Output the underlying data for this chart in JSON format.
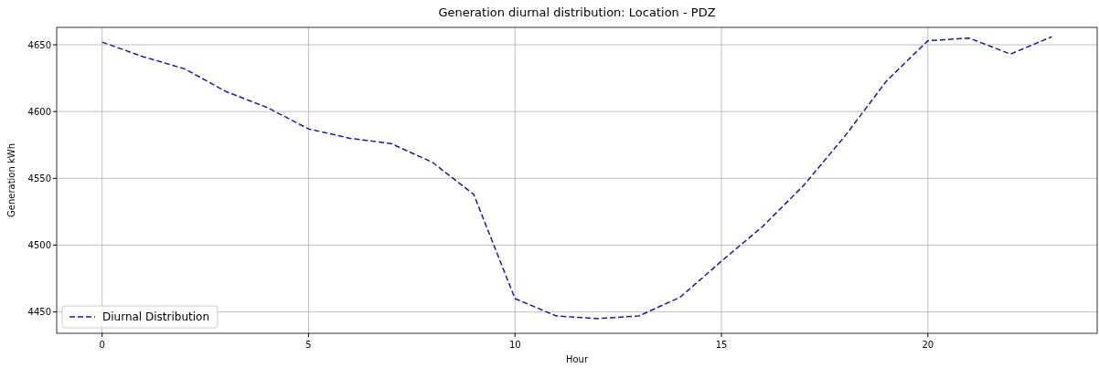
{
  "chart_data": {
    "type": "line",
    "title": "Generation diurnal distribution: Location - PDZ",
    "xlabel": "Hour",
    "ylabel": "Generation kWh",
    "x": [
      0,
      1,
      2,
      3,
      4,
      5,
      6,
      7,
      8,
      9,
      10,
      11,
      12,
      13,
      14,
      15,
      16,
      17,
      18,
      19,
      20,
      21,
      22,
      23
    ],
    "series": [
      {
        "name": "Diurnal Distribution",
        "color": "#1a1aa6",
        "line_style": "dashed",
        "values": [
          4652,
          4641,
          4632,
          4615,
          4603,
          4587,
          4580,
          4576,
          4562,
          4538,
          4460,
          4447,
          4445,
          4447,
          4461,
          4488,
          4514,
          4545,
          4582,
          4623,
          4653,
          4655,
          4643,
          4656
        ]
      }
    ],
    "xlim": [
      -1.1,
      24.1
    ],
    "xticks": [
      0,
      5,
      10,
      15,
      20
    ],
    "ylim": [
      4434,
      4663
    ],
    "yticks": [
      4450,
      4500,
      4550,
      4600,
      4650
    ],
    "grid": true,
    "legend": "bottom left"
  }
}
